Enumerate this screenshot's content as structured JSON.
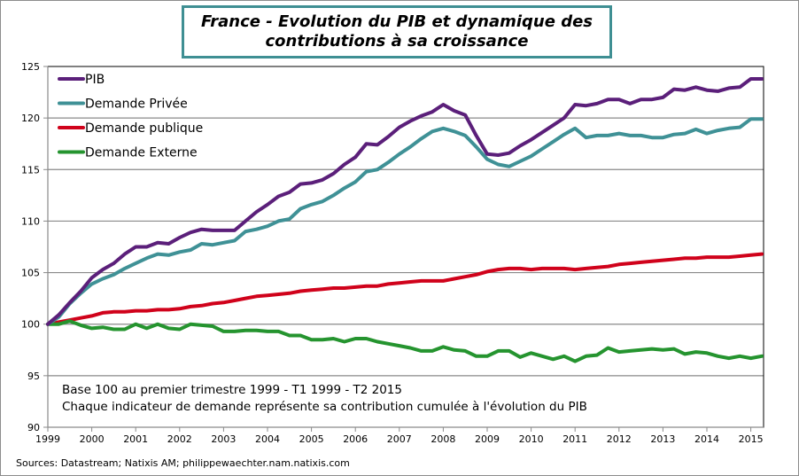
{
  "title": {
    "line1": "France - Evolution du PIB et dynamique des",
    "line2": "contributions à sa croissance"
  },
  "notes": {
    "line1": "Base 100 au premier trimestre 1999 - T1 1999 - T2 2015",
    "line2": "Chaque indicateur  de demande représente sa contribution  cumulée à l'évolution  du PIB"
  },
  "source": "Sources: Datastream; Natixis AM; philippewaechter.nam.natixis.com",
  "chart_data": {
    "type": "line",
    "title": "France - Evolution du PIB et dynamique des contributions à sa croissance",
    "xlabel": "",
    "ylabel": "",
    "frequency": "quarterly",
    "period": "1999 T1 - 2015 T2",
    "x_start": 1999,
    "x_ticks": [
      "1999",
      "2000",
      "2001",
      "2002",
      "2003",
      "2004",
      "2005",
      "2006",
      "2007",
      "2008",
      "2009",
      "2010",
      "2011",
      "2012",
      "2013",
      "2014",
      "2015"
    ],
    "ylim": [
      90,
      125
    ],
    "y_ticks": [
      90,
      95,
      100,
      105,
      110,
      115,
      120,
      125
    ],
    "grid": "horizontal",
    "legend_position": "top-left",
    "series": [
      {
        "name": "PIB",
        "color": "#5b1f7a",
        "values": [
          100,
          100.9,
          102.1,
          103.2,
          104.5,
          105.3,
          105.9,
          106.8,
          107.5,
          107.5,
          107.9,
          107.8,
          108.4,
          108.9,
          109.2,
          109.1,
          109.1,
          109.1,
          110.0,
          110.9,
          111.6,
          112.4,
          112.8,
          113.6,
          113.7,
          114.0,
          114.6,
          115.5,
          116.2,
          117.5,
          117.4,
          118.2,
          119.1,
          119.7,
          120.2,
          120.6,
          121.3,
          120.7,
          120.3,
          118.3,
          116.5,
          116.4,
          116.6,
          117.3,
          117.9,
          118.6,
          119.3,
          120.0,
          121.3,
          121.2,
          121.4,
          121.8,
          121.8,
          121.4,
          121.8,
          121.8,
          122.0,
          122.8,
          122.7,
          123.0,
          122.7,
          122.6,
          122.9,
          123.0,
          123.8,
          123.8
        ]
      },
      {
        "name": "Demande Privée",
        "color": "#3f9196",
        "values": [
          100,
          100.7,
          102.0,
          103.0,
          103.9,
          104.4,
          104.8,
          105.4,
          105.9,
          106.4,
          106.8,
          106.7,
          107.0,
          107.2,
          107.8,
          107.7,
          107.9,
          108.1,
          109.0,
          109.2,
          109.5,
          110.0,
          110.2,
          111.2,
          111.6,
          111.9,
          112.5,
          113.2,
          113.8,
          114.8,
          115.0,
          115.7,
          116.5,
          117.2,
          118.0,
          118.7,
          119.0,
          118.7,
          118.3,
          117.2,
          116.0,
          115.5,
          115.3,
          115.8,
          116.3,
          117.0,
          117.7,
          118.4,
          119.0,
          118.1,
          118.3,
          118.3,
          118.5,
          118.3,
          118.3,
          118.1,
          118.1,
          118.4,
          118.5,
          118.9,
          118.5,
          118.8,
          119.0,
          119.1,
          119.9,
          119.9
        ]
      },
      {
        "name": "Demande publique",
        "color": "#d0021b",
        "values": [
          100,
          100.2,
          100.4,
          100.6,
          100.8,
          101.1,
          101.2,
          101.2,
          101.3,
          101.3,
          101.4,
          101.4,
          101.5,
          101.7,
          101.8,
          102.0,
          102.1,
          102.3,
          102.5,
          102.7,
          102.8,
          102.9,
          103.0,
          103.2,
          103.3,
          103.4,
          103.5,
          103.5,
          103.6,
          103.7,
          103.7,
          103.9,
          104.0,
          104.1,
          104.2,
          104.2,
          104.2,
          104.4,
          104.6,
          104.8,
          105.1,
          105.3,
          105.4,
          105.4,
          105.3,
          105.4,
          105.4,
          105.4,
          105.3,
          105.4,
          105.5,
          105.6,
          105.8,
          105.9,
          106.0,
          106.1,
          106.2,
          106.3,
          106.4,
          106.4,
          106.5,
          106.5,
          106.5,
          106.6,
          106.7,
          106.8
        ]
      },
      {
        "name": "Demande Externe",
        "color": "#25942f",
        "values": [
          100,
          100.0,
          100.3,
          99.9,
          99.6,
          99.7,
          99.5,
          99.5,
          100.0,
          99.6,
          100.0,
          99.6,
          99.5,
          100.0,
          99.9,
          99.8,
          99.3,
          99.3,
          99.4,
          99.4,
          99.3,
          99.3,
          98.9,
          98.9,
          98.5,
          98.5,
          98.6,
          98.3,
          98.6,
          98.6,
          98.3,
          98.1,
          97.9,
          97.7,
          97.4,
          97.4,
          97.8,
          97.5,
          97.4,
          96.9,
          96.9,
          97.4,
          97.4,
          96.8,
          97.2,
          96.9,
          96.6,
          96.9,
          96.4,
          96.9,
          97.0,
          97.7,
          97.3,
          97.4,
          97.5,
          97.6,
          97.5,
          97.6,
          97.1,
          97.3,
          97.2,
          96.9,
          96.7,
          96.9,
          96.7,
          96.9
        ]
      }
    ]
  }
}
